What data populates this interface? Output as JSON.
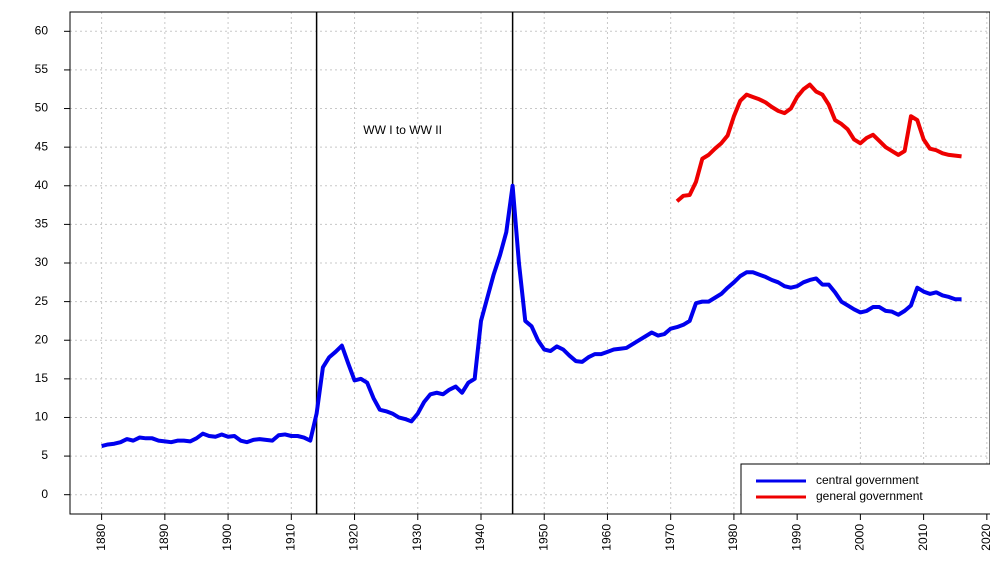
{
  "chart_data": {
    "type": "line",
    "annotation": "WW I to WW II",
    "vlines": [
      1914,
      1945
    ],
    "xlim": [
      1875,
      2020.5
    ],
    "ylim": [
      -2.5,
      62.5
    ],
    "xticks": [
      1880,
      1890,
      1900,
      1910,
      1920,
      1930,
      1940,
      1950,
      1960,
      1970,
      1980,
      1990,
      2000,
      2010,
      2020
    ],
    "yticks": [
      0,
      5,
      10,
      15,
      20,
      25,
      30,
      35,
      40,
      45,
      50,
      55,
      60
    ],
    "grid": true,
    "legend": "bottom-right",
    "series": [
      {
        "name": "central government",
        "color": "#0000ee",
        "x": [
          1880,
          1881,
          1882,
          1883,
          1884,
          1885,
          1886,
          1887,
          1888,
          1889,
          1890,
          1891,
          1892,
          1893,
          1894,
          1895,
          1896,
          1897,
          1898,
          1899,
          1900,
          1901,
          1902,
          1903,
          1904,
          1905,
          1906,
          1907,
          1908,
          1909,
          1910,
          1911,
          1912,
          1913,
          1914,
          1915,
          1916,
          1917,
          1918,
          1919,
          1920,
          1921,
          1922,
          1923,
          1924,
          1925,
          1926,
          1927,
          1928,
          1929,
          1930,
          1931,
          1932,
          1933,
          1934,
          1935,
          1936,
          1937,
          1938,
          1939,
          1940,
          1941,
          1942,
          1943,
          1944,
          1945,
          1946,
          1947,
          1948,
          1949,
          1950,
          1951,
          1952,
          1953,
          1954,
          1955,
          1956,
          1957,
          1958,
          1959,
          1960,
          1961,
          1962,
          1963,
          1964,
          1965,
          1966,
          1967,
          1968,
          1969,
          1970,
          1971,
          1972,
          1973,
          1974,
          1975,
          1976,
          1977,
          1978,
          1979,
          1980,
          1981,
          1982,
          1983,
          1984,
          1985,
          1986,
          1987,
          1988,
          1989,
          1990,
          1991,
          1992,
          1993,
          1994,
          1995,
          1996,
          1997,
          1998,
          1999,
          2000,
          2001,
          2002,
          2003,
          2004,
          2005,
          2006,
          2007,
          2008,
          2009,
          2010,
          2011,
          2012,
          2013,
          2014,
          2015,
          2016
        ],
        "values": [
          6.3,
          6.5,
          6.6,
          6.8,
          7.2,
          7.0,
          7.4,
          7.3,
          7.3,
          7.0,
          6.9,
          6.8,
          7.0,
          7.0,
          6.9,
          7.3,
          7.9,
          7.6,
          7.5,
          7.8,
          7.5,
          7.6,
          7.0,
          6.8,
          7.1,
          7.2,
          7.1,
          7.0,
          7.7,
          7.8,
          7.6,
          7.6,
          7.4,
          7.0,
          10.5,
          16.5,
          17.8,
          18.5,
          19.3,
          17.0,
          14.8,
          15.0,
          14.5,
          12.5,
          11.0,
          10.8,
          10.5,
          10.0,
          9.8,
          9.5,
          10.5,
          12.0,
          13.0,
          13.2,
          13.0,
          13.6,
          14.0,
          13.2,
          14.5,
          15.0,
          22.5,
          25.5,
          28.5,
          31.0,
          34.0,
          40.0,
          30.0,
          22.5,
          21.8,
          20.0,
          18.8,
          18.6,
          19.2,
          18.8,
          18.0,
          17.3,
          17.2,
          17.8,
          18.2,
          18.2,
          18.5,
          18.8,
          18.9,
          19.0,
          19.5,
          20.0,
          20.5,
          21.0,
          20.6,
          20.8,
          21.5,
          21.7,
          22.0,
          22.5,
          24.8,
          25.0,
          25.0,
          25.5,
          26.0,
          26.8,
          27.5,
          28.3,
          28.8,
          28.8,
          28.5,
          28.2,
          27.8,
          27.5,
          27.0,
          26.8,
          27.0,
          27.5,
          27.8,
          28.0,
          27.2,
          27.2,
          26.2,
          25.0,
          24.5,
          24.0,
          23.6,
          23.8,
          24.3,
          24.3,
          23.8,
          23.7,
          23.3,
          23.8,
          24.5,
          26.8,
          26.3,
          26.0,
          26.2,
          25.8,
          25.6,
          25.3,
          25.3
        ]
      },
      {
        "name": "general government",
        "color": "#ee0000",
        "x": [
          1971,
          1972,
          1973,
          1974,
          1975,
          1976,
          1977,
          1978,
          1979,
          1980,
          1981,
          1982,
          1983,
          1984,
          1985,
          1986,
          1987,
          1988,
          1989,
          1990,
          1991,
          1992,
          1993,
          1994,
          1995,
          1996,
          1997,
          1998,
          1999,
          2000,
          2001,
          2002,
          2003,
          2004,
          2005,
          2006,
          2007,
          2008,
          2009,
          2010,
          2011,
          2012,
          2013,
          2014,
          2015,
          2016
        ],
        "values": [
          38.0,
          38.7,
          38.8,
          40.5,
          43.5,
          44.0,
          44.8,
          45.5,
          46.5,
          49.0,
          51.0,
          51.8,
          51.5,
          51.2,
          50.8,
          50.2,
          49.7,
          49.4,
          50.0,
          51.5,
          52.5,
          53.1,
          52.2,
          51.8,
          50.5,
          48.5,
          48.0,
          47.3,
          46.0,
          45.5,
          46.2,
          46.6,
          45.8,
          45.0,
          44.5,
          44.0,
          44.5,
          49.0,
          48.5,
          46.0,
          44.8,
          44.6,
          44.2,
          44.0,
          43.9,
          43.8
        ]
      }
    ]
  }
}
